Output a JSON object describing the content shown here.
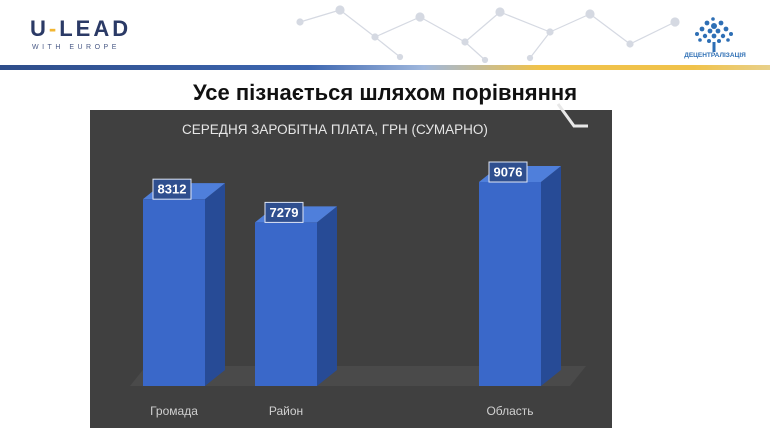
{
  "header": {
    "logo_main_prefix": "U",
    "logo_main_dash": "-",
    "logo_main_suffix": "LEAD",
    "logo_sub": "WITH EUROPE",
    "decentral_label": "ДЕЦЕНТРАЛІЗАЦІЯ"
  },
  "slide": {
    "title": "Усе пізнається шляхом порівняння"
  },
  "colors": {
    "chart_bg": "#404040",
    "bar_front": "#3a68c9",
    "bar_side": "#274b96",
    "bar_top": "#4f7fdb",
    "label_bg": "#2f4f8f",
    "accent_yellow": "#f2b632",
    "brand_navy": "#2b3a66"
  },
  "chart_data": {
    "type": "bar",
    "title": "СЕРЕДНЯ ЗАРОБІТНА ПЛАТА, ГРН (СУМАРНО)",
    "categories": [
      "Громада",
      "Район",
      "",
      "Область"
    ],
    "values": [
      8312,
      7279,
      null,
      9076
    ],
    "data_labels": [
      "8312",
      "7279",
      "",
      "9076"
    ],
    "ylim": [
      0,
      10500
    ],
    "grid": false,
    "legend": "none",
    "style": "3d-column"
  }
}
